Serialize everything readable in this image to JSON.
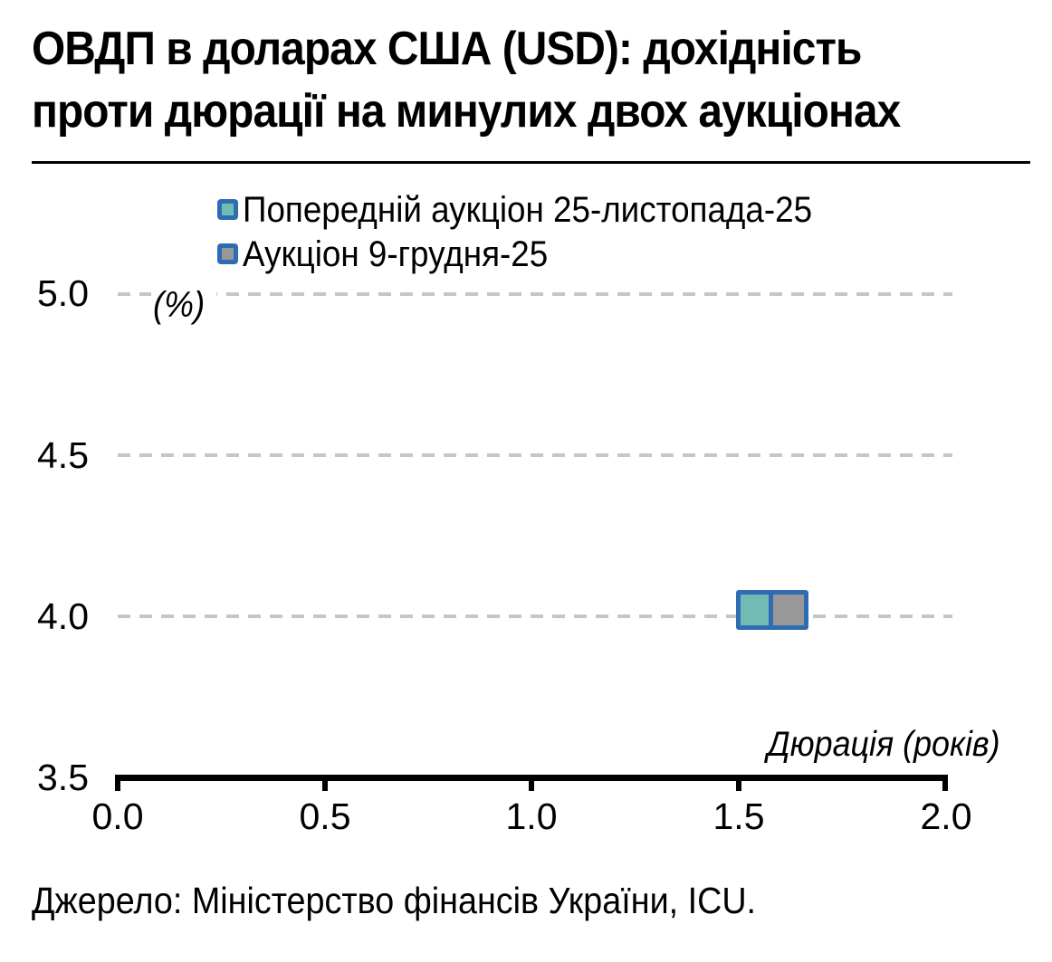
{
  "chart_data": {
    "type": "scatter",
    "title": "ОВДП в доларах США (USD): дохідність проти дюрації на минулих двох аукціонах",
    "title_lines": [
      "ОВДП в доларах США (USD): дохідність",
      "проти дюрації на минулих двох аукціонах"
    ],
    "xlabel": "Дюрація (років)",
    "ylabel": "(%)",
    "xlim": [
      0.0,
      2.0
    ],
    "ylim": [
      3.5,
      5.0
    ],
    "x_ticks": [
      "0.0",
      "0.5",
      "1.0",
      "1.5",
      "2.0"
    ],
    "y_ticks": [
      "5.0",
      "4.5",
      "4.0",
      "3.5"
    ],
    "grid": "horizontal-dashed",
    "legend_position": "top-center",
    "series": [
      {
        "name": "Попередній аукціон 25-листопада-25",
        "marker": "square",
        "fill": "#72bbb5",
        "border": "#2f6db3",
        "points": [
          {
            "x": 1.54,
            "y": 4.02
          }
        ]
      },
      {
        "name": "Аукціон 9-грудня-25",
        "marker": "square",
        "fill": "#989898",
        "border": "#2f6db3",
        "points": [
          {
            "x": 1.62,
            "y": 4.02
          }
        ]
      }
    ],
    "colors": {
      "gridline": "#c6c6c6",
      "axis": "#000000",
      "text": "#000000"
    }
  },
  "footer": {
    "source": "Джерело: Міністерство фінансів України, ICU."
  }
}
